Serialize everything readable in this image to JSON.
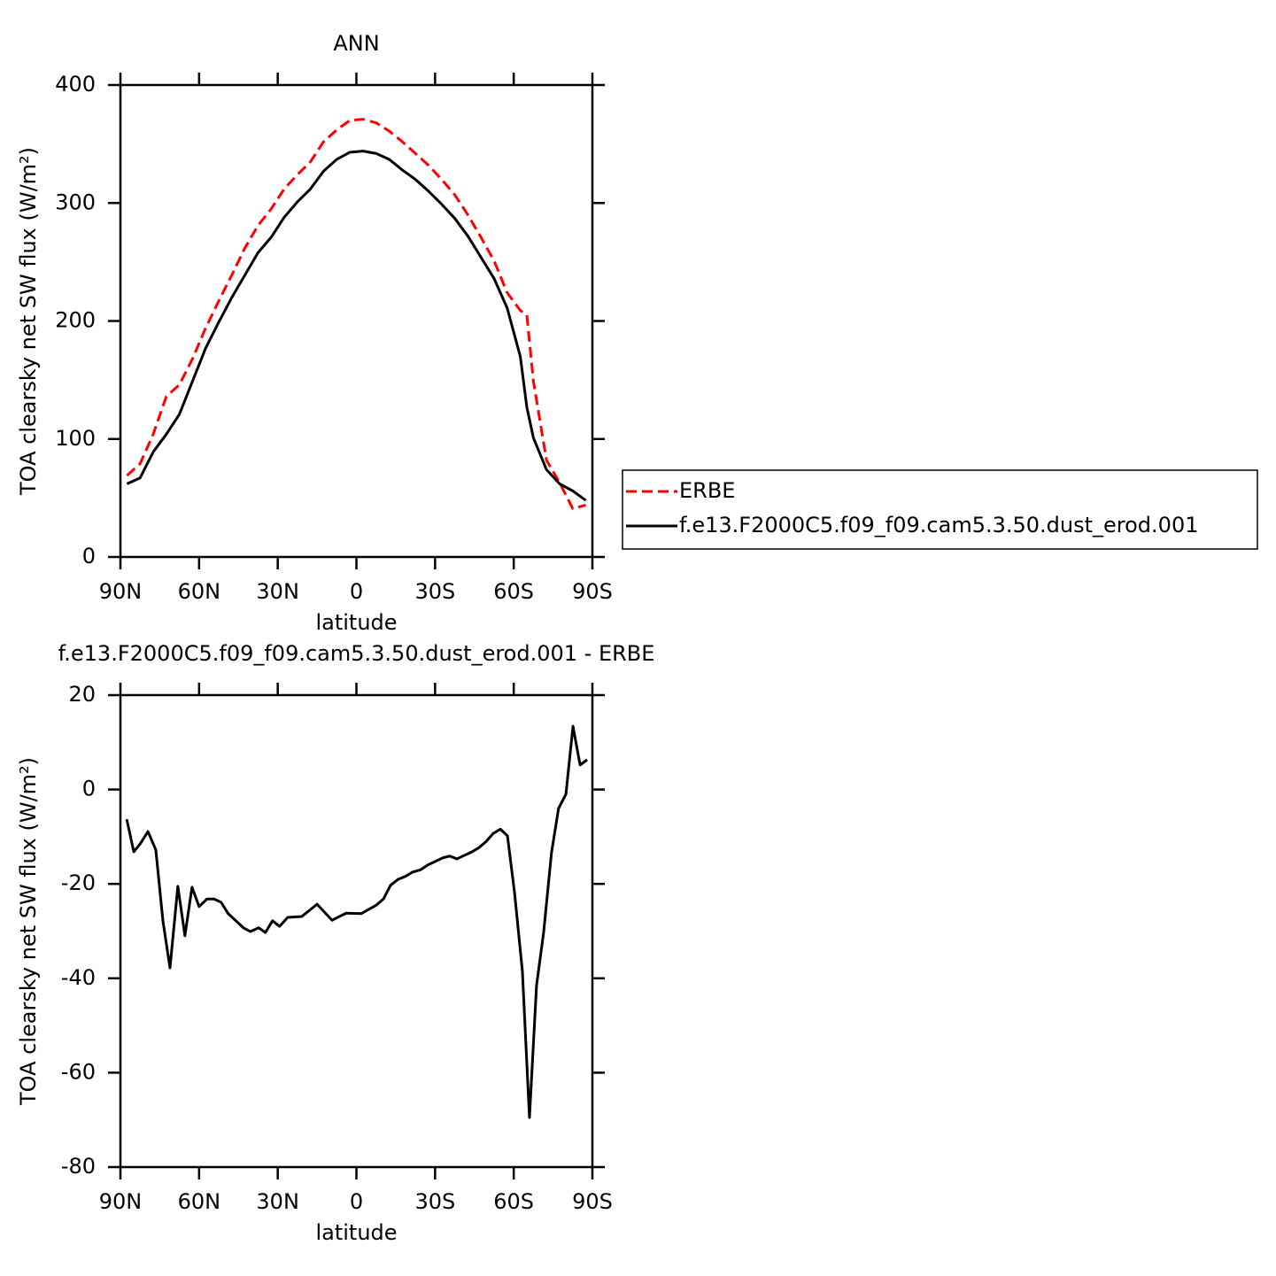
{
  "chart_data": [
    {
      "type": "line",
      "title": "ANN",
      "xlabel": "latitude",
      "ylabel": "TOA clearsky net SW flux (W/m²)",
      "xlim": [
        90,
        -90
      ],
      "xticks": [
        {
          "value": 90,
          "label": "90N"
        },
        {
          "value": 60,
          "label": "60N"
        },
        {
          "value": 30,
          "label": "30N"
        },
        0,
        {
          "value": -30,
          "label": "30S"
        },
        {
          "value": -60,
          "label": "60S"
        },
        {
          "value": -90,
          "label": "90S"
        }
      ],
      "ylim": [
        0,
        400
      ],
      "yticks": [
        0,
        100,
        200,
        300,
        400
      ],
      "legend": "right",
      "x": [
        87.5,
        82.5,
        77.5,
        72.5,
        67.5,
        62.5,
        57.5,
        52.5,
        47.5,
        42.5,
        37.5,
        32.5,
        27.5,
        22.5,
        17.5,
        12.5,
        7.5,
        2.5,
        -2.5,
        -7.5,
        -12.5,
        -17.5,
        -22.5,
        -27.5,
        -32.5,
        -37.5,
        -42.5,
        -47.5,
        -52.5,
        -57.5,
        -62.5,
        -65,
        -67.5,
        -72.5,
        -77.5,
        -82.5,
        -87.5
      ],
      "series": [
        {
          "name": "ERBE",
          "color": "#ff0000",
          "linestyle": "dashed",
          "values": [
            69,
            79,
            104,
            136,
            146,
            168,
            194,
            217,
            239,
            262,
            281,
            295,
            312,
            324,
            335,
            352,
            362,
            370,
            371,
            368,
            361,
            352,
            342,
            332,
            320,
            307,
            290,
            271,
            251,
            224,
            209,
            205,
            149,
            82,
            63,
            41,
            44
          ]
        },
        {
          "name": "f.e13.F2000C5.f09_f09.cam5.3.50.dust_erod.001",
          "color": "#000000",
          "linestyle": "solid",
          "values": [
            62,
            67,
            89,
            104,
            121,
            149,
            177,
            199,
            220,
            239,
            258,
            271,
            288,
            301,
            312,
            327,
            337,
            343,
            344,
            342,
            337,
            328,
            320,
            310,
            299,
            287,
            272,
            254,
            236,
            211,
            170,
            127,
            101,
            74,
            62,
            56,
            48
          ]
        }
      ]
    },
    {
      "type": "line",
      "title": "f.e13.F2000C5.f09_f09.cam5.3.50.dust_erod.001 - ERBE",
      "xlabel": "latitude",
      "ylabel": "TOA clearsky net SW flux (W/m²)",
      "xlim": [
        90,
        -90
      ],
      "xticks": [
        {
          "value": 90,
          "label": "90N"
        },
        {
          "value": 60,
          "label": "60N"
        },
        {
          "value": 30,
          "label": "30N"
        },
        0,
        {
          "value": -30,
          "label": "30S"
        },
        {
          "value": -60,
          "label": "60S"
        },
        {
          "value": -90,
          "label": "90S"
        }
      ],
      "ylim": [
        -80,
        20
      ],
      "yticks": [
        -80,
        -60,
        -40,
        -20,
        0,
        20
      ],
      "x": [
        87.6,
        84.9,
        82.2,
        79.5,
        76.5,
        73.8,
        71.1,
        68.1,
        65.4,
        62.7,
        60,
        57,
        54.3,
        51.6,
        48.9,
        43.1,
        40.4,
        37.3,
        34.7,
        32,
        29.3,
        26.2,
        20.8,
        15,
        9.3,
        3.9,
        -1.8,
        -7.6,
        -10.3,
        -13,
        -16,
        -18.7,
        -21.4,
        -24.5,
        -27.2,
        -32.9,
        -35.6,
        -38.3,
        -44.1,
        -46.8,
        -49.5,
        -52.2,
        -54.9,
        -57.6,
        -60.3,
        -63.3,
        -66,
        -68.7,
        -71.4,
        -74.4,
        -77.1,
        -79.9,
        -82.6,
        -85.3,
        -88
      ],
      "color": "#000000",
      "values": [
        -6.3,
        -13.2,
        -11.3,
        -8.9,
        -12.8,
        -27.8,
        -37.8,
        -20.5,
        -31,
        -20.7,
        -24.8,
        -23.2,
        -23.2,
        -23.9,
        -26.3,
        -29.3,
        -30.1,
        -29.3,
        -30.3,
        -27.8,
        -29,
        -27.1,
        -26.9,
        -24.3,
        -27.7,
        -26.2,
        -26.3,
        -24.5,
        -23.2,
        -20.3,
        -19,
        -18.4,
        -17.5,
        -17,
        -16,
        -14.5,
        -14.1,
        -14.7,
        -13.2,
        -12.3,
        -11,
        -9.3,
        -8.4,
        -9.8,
        -21.8,
        -38.5,
        -69.5,
        -41.5,
        -30.3,
        -13.4,
        -4,
        -1,
        13.4,
        5.2,
        6.3
      ]
    }
  ]
}
